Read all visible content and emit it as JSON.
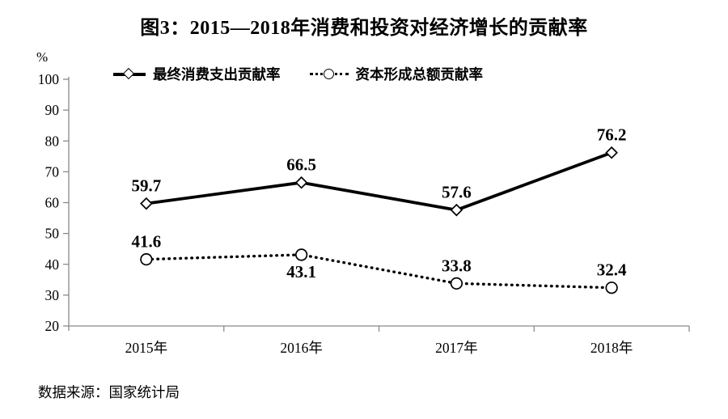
{
  "chart_data": {
    "type": "line",
    "title": "图3：2015—2018年消费和投资对经济增长的贡献率",
    "unit_label": "%",
    "categories": [
      "2015年",
      "2016年",
      "2017年",
      "2018年"
    ],
    "series": [
      {
        "name": "最终消费支出贡献率",
        "values": [
          59.7,
          66.5,
          57.6,
          76.2
        ],
        "line_style": "solid",
        "marker": "diamond",
        "color": "#000000",
        "label_positions": [
          "above",
          "above",
          "above",
          "above"
        ]
      },
      {
        "name": "资本形成总额贡献率",
        "values": [
          41.6,
          43.1,
          33.8,
          32.4
        ],
        "line_style": "dotted",
        "marker": "circle",
        "color": "#000000",
        "label_positions": [
          "above",
          "below",
          "above",
          "above"
        ]
      }
    ],
    "ylim": [
      20,
      100
    ],
    "yticks": [
      20,
      30,
      40,
      50,
      60,
      70,
      80,
      90,
      100
    ],
    "grid": false,
    "legend_position": "top-left",
    "axis_color": "#8a8a8a",
    "marker_fill": "#ffffff",
    "text_color": "#000000",
    "source": "数据来源：国家统计局"
  }
}
